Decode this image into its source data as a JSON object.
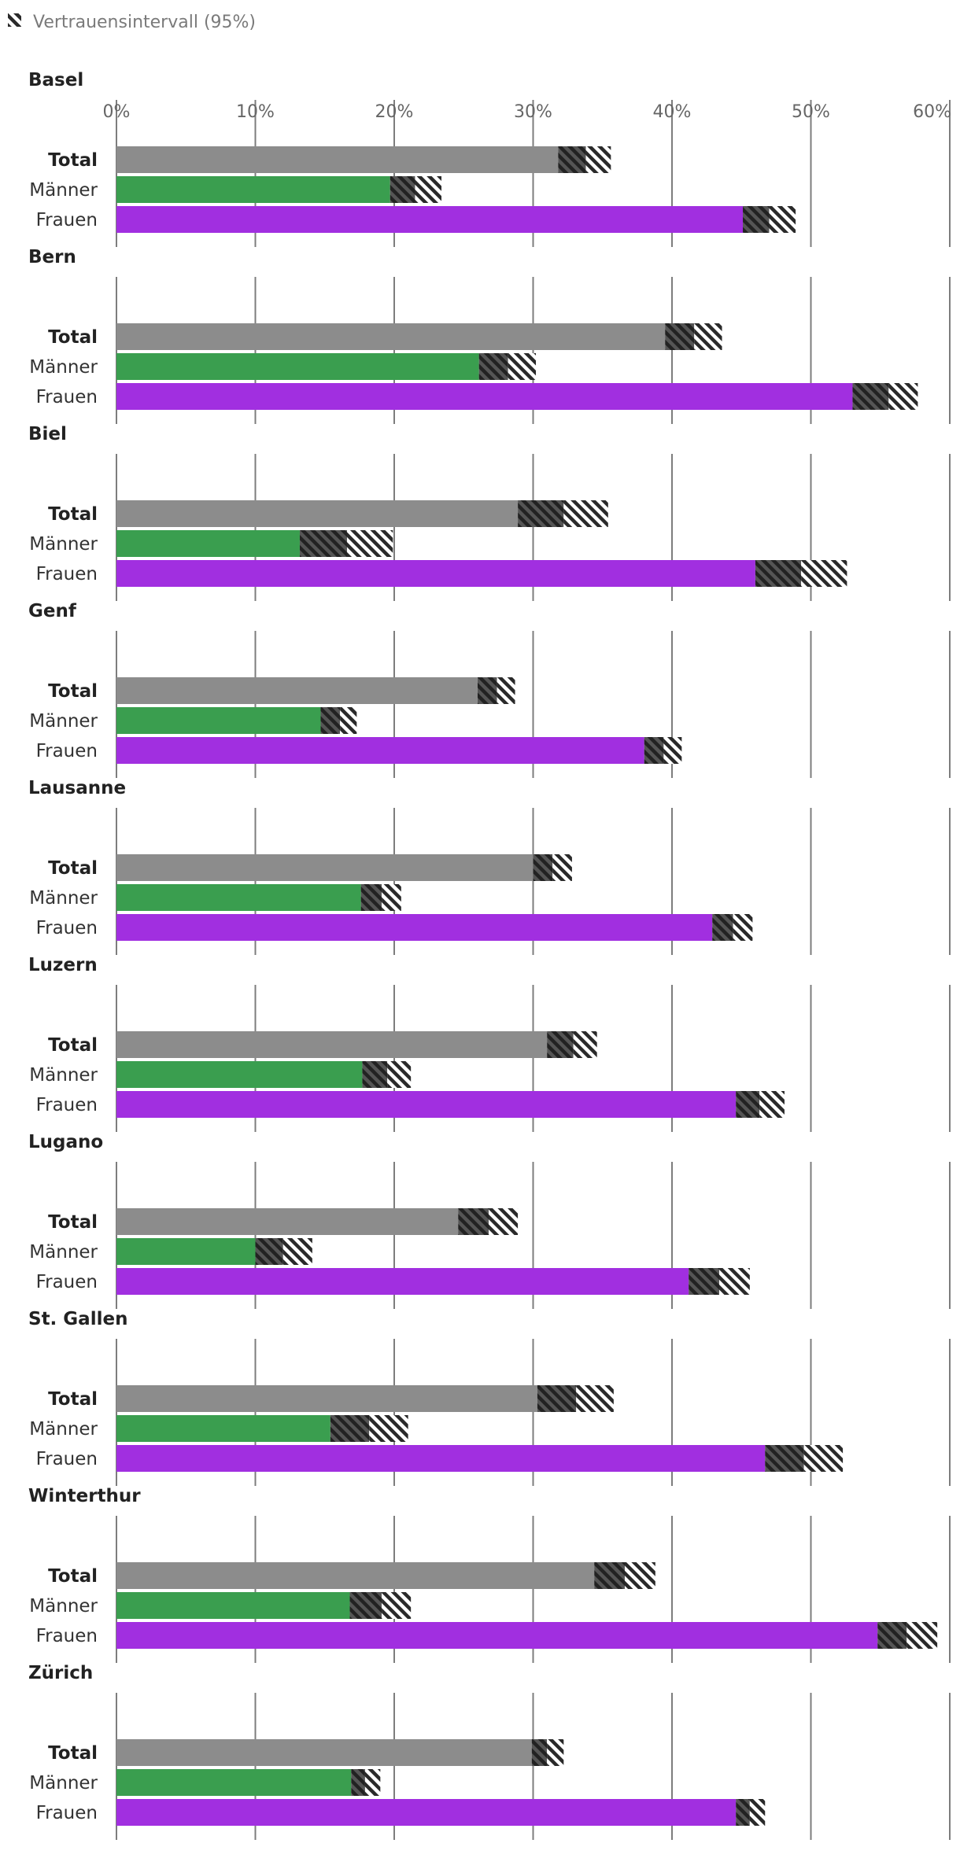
{
  "chart_data": {
    "type": "bar",
    "orientation": "horizontal",
    "legend": {
      "label": "Vertrauensintervall (95%)",
      "placement": "top-left"
    },
    "x_ticks": [
      "0%",
      "10%",
      "20%",
      "30%",
      "40%",
      "50%",
      "60%"
    ],
    "xlim": [
      0,
      60
    ],
    "grid": true,
    "categories": [
      "Total",
      "Männer",
      "Frauen"
    ],
    "series_colors": {
      "Total": "#8c8c8c",
      "Männer": "#3a9e4f",
      "Frauen": "#a12fe0"
    },
    "panels": [
      {
        "title": "Basel",
        "values": [
          33.8,
          21.5,
          47.0
        ],
        "ci": [
          [
            31.8,
            35.6
          ],
          [
            19.7,
            23.4
          ],
          [
            45.1,
            48.9
          ]
        ]
      },
      {
        "title": "Bern",
        "values": [
          41.6,
          28.2,
          55.6
        ],
        "ci": [
          [
            39.5,
            43.6
          ],
          [
            26.1,
            30.2
          ],
          [
            53.0,
            57.7
          ]
        ]
      },
      {
        "title": "Biel",
        "values": [
          32.2,
          16.6,
          49.3
        ],
        "ci": [
          [
            28.9,
            35.4
          ],
          [
            13.2,
            19.9
          ],
          [
            46.0,
            52.6
          ]
        ]
      },
      {
        "title": "Genf",
        "values": [
          27.4,
          16.1,
          39.4
        ],
        "ci": [
          [
            26.0,
            28.7
          ],
          [
            14.7,
            17.3
          ],
          [
            38.0,
            40.7
          ]
        ]
      },
      {
        "title": "Lausanne",
        "values": [
          31.4,
          19.1,
          44.4
        ],
        "ci": [
          [
            30.0,
            32.8
          ],
          [
            17.6,
            20.5
          ],
          [
            42.9,
            45.8
          ]
        ]
      },
      {
        "title": "Luzern",
        "values": [
          32.9,
          19.5,
          46.3
        ],
        "ci": [
          [
            31.0,
            34.6
          ],
          [
            17.7,
            21.2
          ],
          [
            44.6,
            48.1
          ]
        ]
      },
      {
        "title": "Lugano",
        "values": [
          26.8,
          12.0,
          43.4
        ],
        "ci": [
          [
            24.6,
            28.9
          ],
          [
            10.0,
            14.1
          ],
          [
            41.2,
            45.6
          ]
        ]
      },
      {
        "title": "St. Gallen",
        "values": [
          33.1,
          18.2,
          49.5
        ],
        "ci": [
          [
            30.3,
            35.8
          ],
          [
            15.4,
            21.0
          ],
          [
            46.7,
            52.3
          ]
        ]
      },
      {
        "title": "Winterthur",
        "values": [
          36.6,
          19.1,
          56.9
        ],
        "ci": [
          [
            34.4,
            38.8
          ],
          [
            16.8,
            21.2
          ],
          [
            54.8,
            59.1
          ]
        ]
      },
      {
        "title": "Zürich",
        "values": [
          31.0,
          17.9,
          45.6
        ],
        "ci": [
          [
            29.9,
            32.2
          ],
          [
            16.9,
            19.0
          ],
          [
            44.6,
            46.7
          ]
        ]
      }
    ]
  }
}
